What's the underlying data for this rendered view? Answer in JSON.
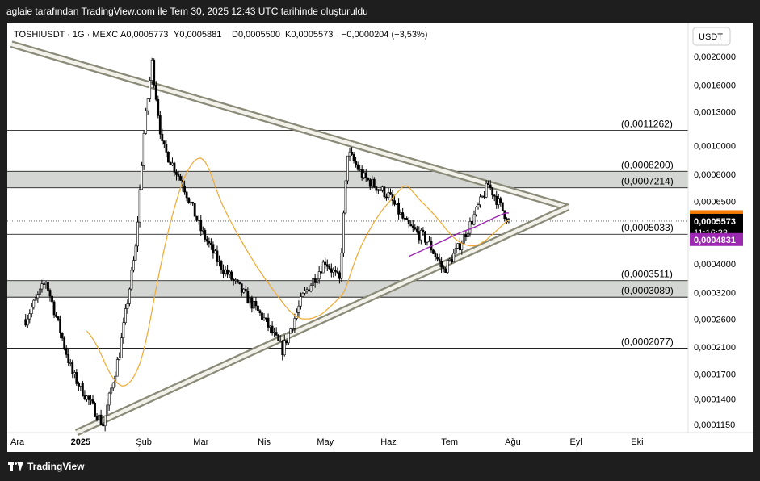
{
  "header": {
    "title": "aglaie tarafından TradingView.com ile Tem 30, 2025 12:43 UTC tarihinde oluşturuldu"
  },
  "footer": {
    "brand": "TradingView",
    "logo_icon": "tradingview-logo-icon"
  },
  "colors": {
    "candle": "#000000",
    "ma_orange": "#f0a830",
    "ma_purple": "#9c27b0",
    "channel_line": "#8a8a78",
    "channel_fill": "#f2f2ea",
    "zone_fill": "#d4d6d3",
    "badge_orange": "#f57c00",
    "badge_black": "#000000",
    "badge_purple": "#9c27b0"
  },
  "chart_data": {
    "type": "candlestick",
    "symbol_line": "TOSHIUSDT · 1G · MEXC",
    "ohlc": {
      "open": "A0,0005773",
      "high": "Y0,0005881",
      "low": "D0,0005500",
      "close": "K0,0005573",
      "change": "−0,0000204 (−3,53%)"
    },
    "currency": "USDT",
    "y_scale": "log",
    "y_range": [
      0.000108,
      0.0026
    ],
    "y_ticks": [
      "0,0020000",
      "0,0016000",
      "0,0013000",
      "0,0010000",
      "0,0008000",
      "0,0006500",
      "0,0004000",
      "0,0003200",
      "0,0002600",
      "0,0002100",
      "0,0001700",
      "0,0001400",
      "0,0001150"
    ],
    "x_labels": [
      "Ara",
      "2025",
      "Şub",
      "Mar",
      "Nis",
      "May",
      "Haz",
      "Tem",
      "Ağu",
      "Eyl",
      "Eki"
    ],
    "levels": [
      {
        "label": "(0,0011262)",
        "value": 0.0011262
      },
      {
        "label": "(0,0008200)",
        "value": 0.00082
      },
      {
        "label": "(0,0007214)",
        "value": 0.0007214
      },
      {
        "label": "(0,0005033)",
        "value": 0.0005033
      },
      {
        "label": "(0,0003511)",
        "value": 0.0003511
      },
      {
        "label": "(0,0003089)",
        "value": 0.0003089
      },
      {
        "label": "(0,0002077)",
        "value": 0.0002077
      }
    ],
    "zones": [
      {
        "from": 0.0007214,
        "to": 0.00082
      },
      {
        "from": 0.0003089,
        "to": 0.0003511
      }
    ],
    "badges": [
      {
        "label": "0,0005697",
        "value": 0.0005697,
        "color": "#f57c00"
      },
      {
        "label": "0,0005573",
        "value": 0.0005573,
        "color": "#000000",
        "sub": "11:16:33"
      },
      {
        "label": "0,0004831",
        "value": 0.0004831,
        "color": "#9c27b0"
      }
    ],
    "anchors": [
      {
        "date": "2024-12-05",
        "price": 0.00026
      },
      {
        "date": "2024-12-15",
        "price": 0.00035
      },
      {
        "date": "2024-12-28",
        "price": 0.00017
      },
      {
        "date": "2025-01-12",
        "price": 0.000115
      },
      {
        "date": "2025-01-20",
        "price": 0.0002
      },
      {
        "date": "2025-01-28",
        "price": 0.00045
      },
      {
        "date": "2025-02-01",
        "price": 0.0011
      },
      {
        "date": "2025-02-05",
        "price": 0.0019
      },
      {
        "date": "2025-02-10",
        "price": 0.001
      },
      {
        "date": "2025-02-20",
        "price": 0.00075
      },
      {
        "date": "2025-03-01",
        "price": 0.00052
      },
      {
        "date": "2025-03-10",
        "price": 0.0004
      },
      {
        "date": "2025-03-20",
        "price": 0.00033
      },
      {
        "date": "2025-04-01",
        "price": 0.00026
      },
      {
        "date": "2025-04-10",
        "price": 0.000205
      },
      {
        "date": "2025-04-20",
        "price": 0.00031
      },
      {
        "date": "2025-05-01",
        "price": 0.00041
      },
      {
        "date": "2025-05-08",
        "price": 0.00035
      },
      {
        "date": "2025-05-12",
        "price": 0.00095
      },
      {
        "date": "2025-05-20",
        "price": 0.00078
      },
      {
        "date": "2025-06-01",
        "price": 0.00068
      },
      {
        "date": "2025-06-10",
        "price": 0.00054
      },
      {
        "date": "2025-06-20",
        "price": 0.00048
      },
      {
        "date": "2025-06-28",
        "price": 0.00038
      },
      {
        "date": "2025-07-05",
        "price": 0.00045
      },
      {
        "date": "2025-07-12",
        "price": 0.00056
      },
      {
        "date": "2025-07-20",
        "price": 0.00074
      },
      {
        "date": "2025-07-30",
        "price": 0.0005573
      }
    ],
    "trend_lines": [
      {
        "name": "upper",
        "from": {
          "date": "2024-11-28",
          "price": 0.0022
        },
        "to": {
          "date": "2025-08-28",
          "price": 0.00062
        }
      },
      {
        "name": "lower",
        "from": {
          "date": "2024-12-30",
          "price": 0.000108
        },
        "to": {
          "date": "2025-08-28",
          "price": 0.00062
        }
      }
    ]
  }
}
